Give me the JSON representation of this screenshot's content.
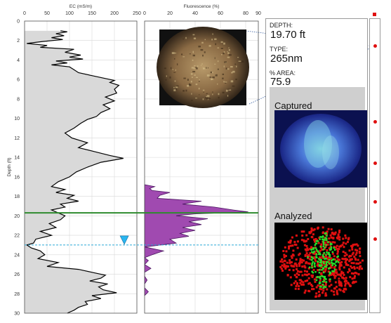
{
  "chart_data": [
    {
      "type": "area",
      "xlabel": "EC (mS/m)",
      "ylabel": "Depth (ft)",
      "xlim": [
        0,
        250
      ],
      "ylim": [
        0,
        30
      ],
      "x_ticks": [
        0,
        50,
        100,
        150,
        200,
        250
      ],
      "y_ticks": [
        0,
        2,
        4,
        6,
        8,
        10,
        12,
        14,
        16,
        18,
        20,
        22,
        24,
        26,
        28,
        30
      ],
      "depth": [
        1.0,
        1.1,
        1.3,
        1.5,
        1.7,
        1.9,
        2.1,
        2.3,
        2.5,
        2.7,
        2.9,
        3.2,
        3.5,
        3.7,
        3.9,
        4.1,
        4.3,
        4.5,
        4.7,
        5.0,
        5.3,
        5.6,
        5.9,
        6.1,
        6.3,
        6.6,
        7.0,
        7.4,
        7.8,
        8.2,
        8.6,
        9.0,
        9.4,
        9.8,
        10.1,
        10.5,
        11.0,
        11.5,
        12.0,
        12.5,
        13.0,
        13.4,
        13.8,
        14.1,
        14.5,
        15.0,
        15.5,
        16.0,
        16.5,
        17.0,
        17.3,
        17.6,
        17.9,
        18.2,
        18.5,
        18.8,
        19.1,
        19.4,
        19.7,
        20.0,
        20.4,
        20.8,
        21.2,
        21.6,
        22.0,
        22.4,
        22.8,
        23.0,
        23.3,
        23.6,
        24.0,
        24.4,
        24.8,
        25.2,
        25.5,
        25.8,
        26.1,
        26.4,
        26.7,
        27.0,
        27.3,
        27.6,
        27.9,
        28.2,
        28.5,
        28.8,
        29.1,
        29.4,
        29.7,
        30.0
      ],
      "ec": [
        80,
        95,
        70,
        88,
        60,
        85,
        40,
        5,
        50,
        35,
        110,
        90,
        125,
        100,
        130,
        70,
        95,
        60,
        100,
        110,
        120,
        150,
        180,
        200,
        190,
        210,
        200,
        205,
        180,
        200,
        175,
        190,
        170,
        160,
        140,
        125,
        110,
        90,
        105,
        140,
        120,
        155,
        190,
        220,
        170,
        140,
        115,
        100,
        75,
        60,
        90,
        70,
        110,
        95,
        120,
        80,
        90,
        60,
        75,
        90,
        80,
        55,
        70,
        35,
        60,
        25,
        20,
        5,
        15,
        35,
        45,
        30,
        75,
        50,
        120,
        150,
        180,
        170,
        145,
        185,
        165,
        175,
        205,
        150,
        170,
        135,
        140,
        120,
        110,
        95
      ]
    },
    {
      "type": "area",
      "xlabel": "Fluorescence (%)",
      "xlim": [
        0,
        90
      ],
      "x_ticks": [
        0,
        20,
        40,
        60,
        80,
        90
      ],
      "depth": [
        16.8,
        17.0,
        17.2,
        17.4,
        17.6,
        17.9,
        18.2,
        18.5,
        18.8,
        19.1,
        19.4,
        19.6,
        19.8,
        20.0,
        20.3,
        20.6,
        20.9,
        21.2,
        21.5,
        21.8,
        22.1,
        22.4,
        22.8,
        23.2,
        23.6,
        24.0,
        24.3,
        24.6,
        25.0,
        25.4,
        25.8,
        26.2,
        26.6,
        27.0,
        27.4,
        27.8,
        28.2
      ],
      "fluorescence": [
        0,
        8,
        4,
        6,
        20,
        12,
        10,
        45,
        30,
        55,
        70,
        82,
        40,
        25,
        50,
        35,
        45,
        30,
        40,
        28,
        35,
        20,
        25,
        0,
        15,
        6,
        0,
        3,
        0,
        5,
        0,
        0,
        2,
        0,
        0,
        3,
        0
      ]
    }
  ],
  "markers": {
    "selected_depth_ft": 19.7,
    "water_level_ft": 23.0
  },
  "colors": {
    "ec_fill": "#d9d9d9",
    "ec_line": "#000000",
    "fluor_fill": "#a04ab0",
    "fluor_line": "#4a1560",
    "selected_line": "#2e8b2e",
    "water_line": "#2aa7d8",
    "water_triangle": "#29b6f0",
    "marker": "#e01010"
  },
  "info": {
    "depth_label": "DEPTH:",
    "depth_value": "19.70 ft",
    "type_label": "TYPE:",
    "type_value": "265nm",
    "area_label": "% AREA:",
    "area_value": "75.9",
    "captured_label": "Captured",
    "analyzed_label": "Analyzed"
  },
  "rail_marker_depths_ft": [
    2.5,
    10.3,
    14.5,
    18.5,
    22.3
  ]
}
